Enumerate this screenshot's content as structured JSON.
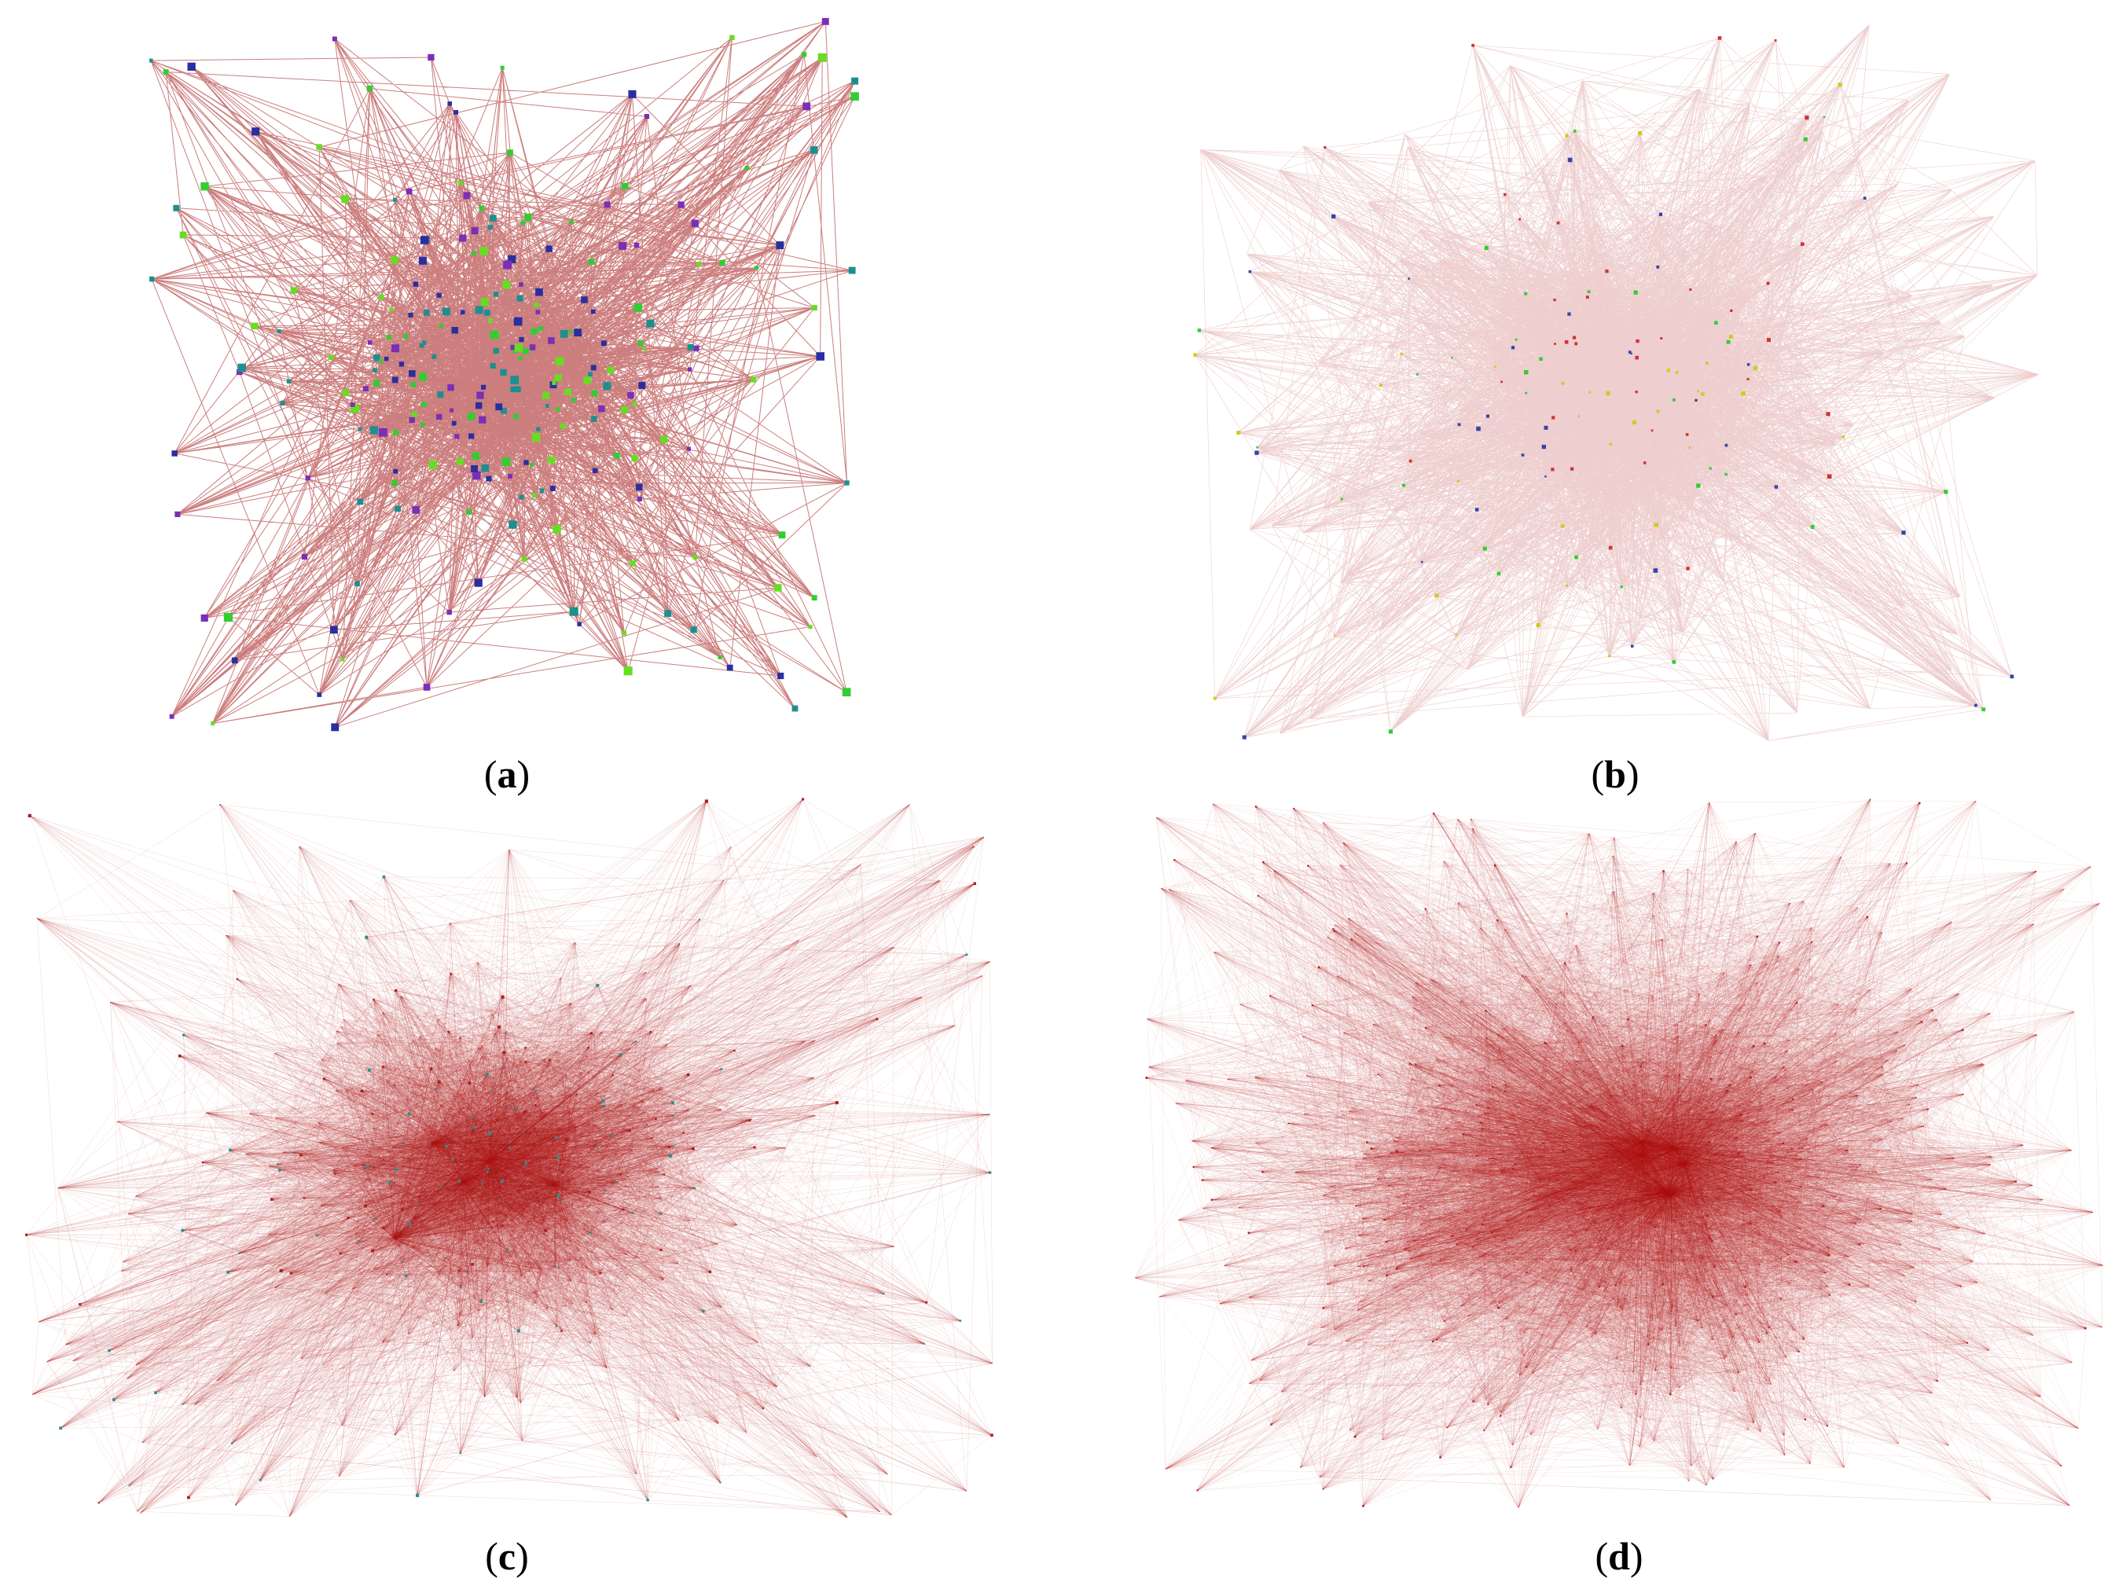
{
  "panels": [
    {
      "id": "a",
      "caption_open": "(",
      "caption_letter": "a",
      "caption_close": ")",
      "edge_color": "#a31414",
      "node_colors": [
        "#33cc33",
        "#7a2fb5",
        "#2a2f9e",
        "#1e8f8f",
        "#66dd22"
      ],
      "density": "sparse"
    },
    {
      "id": "b",
      "caption_open": "(",
      "caption_letter": "b",
      "caption_close": ")",
      "edge_color": "#b22222",
      "node_colors": [
        "#33cc33",
        "#cccc22",
        "#cc3333",
        "#3344aa"
      ],
      "density": "medium"
    },
    {
      "id": "c",
      "caption_open": "(",
      "caption_letter": "c",
      "caption_close": ")",
      "edge_color": "#b01818",
      "node_colors": [
        "#aa2222",
        "#2a8f8f"
      ],
      "density": "dense"
    },
    {
      "id": "d",
      "caption_open": "(",
      "caption_letter": "d",
      "caption_close": ")",
      "edge_color": "#b01818",
      "node_colors": [
        "#aa2222"
      ],
      "density": "very-dense"
    }
  ]
}
